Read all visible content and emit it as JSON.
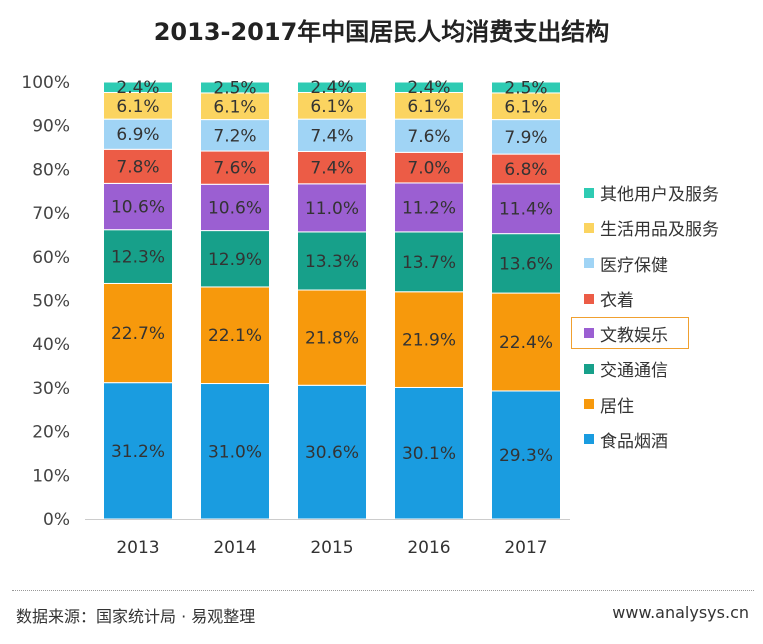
{
  "chart_data": {
    "type": "bar",
    "stacked": true,
    "title": "2013-2017年中国居民人均消费支出结构",
    "categories": [
      "2013",
      "2014",
      "2015",
      "2016",
      "2017"
    ],
    "ylim": [
      0,
      100
    ],
    "yticks": [
      "0%",
      "10%",
      "20%",
      "30%",
      "40%",
      "50%",
      "60%",
      "70%",
      "80%",
      "90%",
      "100%"
    ],
    "legend_position": "right",
    "series": [
      {
        "name": "食品烟酒",
        "color": "#1a9ce0",
        "values": [
          31.2,
          31.0,
          30.6,
          30.1,
          29.3
        ]
      },
      {
        "name": "居住",
        "color": "#f7990c",
        "values": [
          22.7,
          22.1,
          21.8,
          21.9,
          22.4
        ]
      },
      {
        "name": "交通通信",
        "color": "#17a08a",
        "values": [
          12.3,
          12.9,
          13.3,
          13.7,
          13.6
        ]
      },
      {
        "name": "文教娱乐",
        "color": "#9b5fd2",
        "values": [
          10.6,
          10.6,
          11.0,
          11.2,
          11.4
        ]
      },
      {
        "name": "衣着",
        "color": "#ec5c46",
        "values": [
          7.8,
          7.6,
          7.4,
          7.0,
          6.8
        ]
      },
      {
        "name": "医疗保健",
        "color": "#a0d4f5",
        "values": [
          6.9,
          7.2,
          7.4,
          7.6,
          7.9
        ]
      },
      {
        "name": "生活用品及服务",
        "color": "#fbd460",
        "values": [
          6.1,
          6.1,
          6.1,
          6.1,
          6.1
        ]
      },
      {
        "name": "其他用户及服务",
        "color": "#2ecbb3",
        "values": [
          2.4,
          2.5,
          2.4,
          2.4,
          2.5
        ]
      }
    ]
  },
  "footer": {
    "source": "数据来源：国家统计局 · 易观整理",
    "site": "www.analysys.cn"
  }
}
